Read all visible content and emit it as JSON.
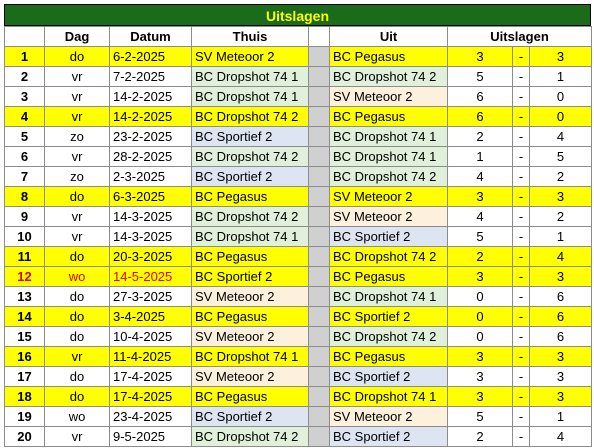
{
  "title": "Uitslagen",
  "headers": {
    "nr": "",
    "dag": "Dag",
    "datum": "Datum",
    "thuis": "Thuis",
    "uit": "Uit",
    "uitslagen": "Uitslagen"
  },
  "colors": {
    "title_bg": "#1a6b1a",
    "title_text": "#ffff00",
    "highlight": "#ffff00",
    "postponed_text": "#e00000",
    "sv_meteoor_bg": "#fdf0dc",
    "bc_dropshot_bg": "#e1f0da",
    "bc_sportief_bg": "#dde5f3",
    "gap_bg": "#d0d0d0"
  },
  "rows": [
    {
      "nr": "1",
      "dag": "do",
      "datum": "6-2-2025",
      "thuis": "SV Meteoor 2",
      "uit": "BC Pegasus",
      "h": "3",
      "sep": "-",
      "a": "3"
    },
    {
      "nr": "2",
      "dag": "vr",
      "datum": "7-2-2025",
      "thuis": "BC Dropshot 74 1",
      "uit": "BC Dropshot 74 2",
      "h": "5",
      "sep": "-",
      "a": "1"
    },
    {
      "nr": "3",
      "dag": "vr",
      "datum": "14-2-2025",
      "thuis": "BC Dropshot 74 1",
      "uit": "SV Meteoor 2",
      "h": "6",
      "sep": "-",
      "a": "0"
    },
    {
      "nr": "4",
      "dag": "vr",
      "datum": "14-2-2025",
      "thuis": "BC Dropshot 74 2",
      "uit": "BC Pegasus",
      "h": "6",
      "sep": "-",
      "a": "0"
    },
    {
      "nr": "5",
      "dag": "zo",
      "datum": "23-2-2025",
      "thuis": "BC Sportief 2",
      "uit": "BC Dropshot 74 1",
      "h": "2",
      "sep": "-",
      "a": "4"
    },
    {
      "nr": "6",
      "dag": "vr",
      "datum": "28-2-2025",
      "thuis": "BC Dropshot 74 2",
      "uit": "BC Dropshot 74 1",
      "h": "1",
      "sep": "-",
      "a": "5"
    },
    {
      "nr": "7",
      "dag": "zo",
      "datum": "2-3-2025",
      "thuis": "BC Sportief 2",
      "uit": "BC Dropshot 74 2",
      "h": "4",
      "sep": "-",
      "a": "2"
    },
    {
      "nr": "8",
      "dag": "do",
      "datum": "6-3-2025",
      "thuis": "BC Pegasus",
      "uit": "SV Meteoor 2",
      "h": "3",
      "sep": "-",
      "a": "3"
    },
    {
      "nr": "9",
      "dag": "vr",
      "datum": "14-3-2025",
      "thuis": "BC Dropshot 74 2",
      "uit": "SV Meteoor 2",
      "h": "4",
      "sep": "-",
      "a": "2"
    },
    {
      "nr": "10",
      "dag": "vr",
      "datum": "14-3-2025",
      "thuis": "BC Dropshot 74 1",
      "uit": "BC Sportief 2",
      "h": "5",
      "sep": "-",
      "a": "1"
    },
    {
      "nr": "11",
      "dag": "do",
      "datum": "20-3-2025",
      "thuis": "BC Pegasus",
      "uit": "BC Dropshot 74 2",
      "h": "2",
      "sep": "-",
      "a": "4"
    },
    {
      "nr": "12",
      "dag": "wo",
      "datum": "14-5-2025",
      "thuis": "BC Sportief 2",
      "uit": "BC Pegasus",
      "h": "3",
      "sep": "-",
      "a": "3"
    },
    {
      "nr": "13",
      "dag": "do",
      "datum": "27-3-2025",
      "thuis": "SV Meteoor 2",
      "uit": "BC Dropshot 74 1",
      "h": "0",
      "sep": "-",
      "a": "6"
    },
    {
      "nr": "14",
      "dag": "do",
      "datum": "3-4-2025",
      "thuis": "BC Pegasus",
      "uit": "BC Sportief 2",
      "h": "0",
      "sep": "-",
      "a": "6"
    },
    {
      "nr": "15",
      "dag": "do",
      "datum": "10-4-2025",
      "thuis": "SV Meteoor 2",
      "uit": "BC Dropshot 74 2",
      "h": "0",
      "sep": "-",
      "a": "6"
    },
    {
      "nr": "16",
      "dag": "vr",
      "datum": "11-4-2025",
      "thuis": "BC Dropshot 74 1",
      "uit": "BC Pegasus",
      "h": "3",
      "sep": "-",
      "a": "3"
    },
    {
      "nr": "17",
      "dag": "do",
      "datum": "17-4-2025",
      "thuis": "SV Meteoor 2",
      "uit": "BC Sportief 2",
      "h": "3",
      "sep": "-",
      "a": "3"
    },
    {
      "nr": "18",
      "dag": "do",
      "datum": "17-4-2025",
      "thuis": "BC Pegasus",
      "uit": "BC Dropshot 74 1",
      "h": "3",
      "sep": "-",
      "a": "3"
    },
    {
      "nr": "19",
      "dag": "wo",
      "datum": "23-4-2025",
      "thuis": "BC Sportief 2",
      "uit": "SV Meteoor 2",
      "h": "5",
      "sep": "-",
      "a": "1"
    },
    {
      "nr": "20",
      "dag": "vr",
      "datum": "9-5-2025",
      "thuis": "BC Dropshot 74 2",
      "uit": "BC Sportief 2",
      "h": "2",
      "sep": "-",
      "a": "4"
    }
  ]
}
